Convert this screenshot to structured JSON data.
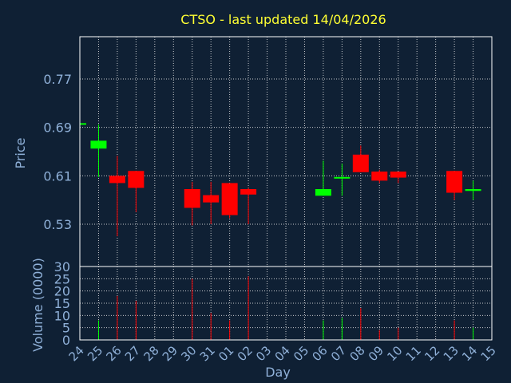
{
  "chart_data": {
    "type": "candlestick",
    "title": "CTSO - last updated 14/04/2026",
    "xlabel": "Day",
    "ylabel_price": "Price",
    "ylabel_volume": "Volume (0000)",
    "price_ylim": [
      0.46,
      0.84
    ],
    "price_ticks": [
      "0.53",
      "0.61",
      "0.69",
      "0.77"
    ],
    "volume_ylim": [
      0,
      30
    ],
    "volume_ticks": [
      "0",
      "5",
      "10",
      "15",
      "20",
      "25",
      "30"
    ],
    "x_labels": [
      "24",
      "25",
      "26",
      "27",
      "28",
      "29",
      "30",
      "31",
      "01",
      "02",
      "03",
      "04",
      "05",
      "06",
      "07",
      "08",
      "09",
      "10",
      "11",
      "12",
      "13",
      "14",
      "15"
    ],
    "colors": {
      "up": "#00ff00",
      "down": "#ff0000",
      "background": "#0f2034",
      "title": "#ffff33",
      "axis_text": "#8fb0d8"
    },
    "candles": [
      {
        "day": "24",
        "open": 0.697,
        "close": 0.697,
        "high": 0.697,
        "low": 0.697,
        "volume": 0
      },
      {
        "day": "25",
        "open": 0.655,
        "close": 0.668,
        "high": 0.695,
        "low": 0.608,
        "volume": 8
      },
      {
        "day": "26",
        "open": 0.61,
        "close": 0.598,
        "high": 0.643,
        "low": 0.51,
        "volume": 18
      },
      {
        "day": "27",
        "open": 0.618,
        "close": 0.59,
        "high": 0.618,
        "low": 0.55,
        "volume": 16
      },
      {
        "day": "30",
        "open": 0.588,
        "close": 0.557,
        "high": 0.6,
        "low": 0.528,
        "volume": 25
      },
      {
        "day": "31",
        "open": 0.578,
        "close": 0.566,
        "high": 0.6,
        "low": 0.53,
        "volume": 11
      },
      {
        "day": "01",
        "open": 0.598,
        "close": 0.545,
        "high": 0.598,
        "low": 0.54,
        "volume": 8
      },
      {
        "day": "02",
        "open": 0.588,
        "close": 0.579,
        "high": 0.59,
        "low": 0.53,
        "volume": 26
      },
      {
        "day": "06",
        "open": 0.577,
        "close": 0.588,
        "high": 0.635,
        "low": 0.577,
        "volume": 8
      },
      {
        "day": "07",
        "open": 0.606,
        "close": 0.608,
        "high": 0.63,
        "low": 0.577,
        "volume": 9
      },
      {
        "day": "08",
        "open": 0.645,
        "close": 0.616,
        "high": 0.66,
        "low": 0.616,
        "volume": 13
      },
      {
        "day": "09",
        "open": 0.617,
        "close": 0.602,
        "high": 0.62,
        "low": 0.598,
        "volume": 4
      },
      {
        "day": "10",
        "open": 0.617,
        "close": 0.607,
        "high": 0.617,
        "low": 0.598,
        "volume": 5
      },
      {
        "day": "13",
        "open": 0.618,
        "close": 0.582,
        "high": 0.618,
        "low": 0.57,
        "volume": 8
      },
      {
        "day": "14",
        "open": 0.585,
        "close": 0.588,
        "high": 0.602,
        "low": 0.57,
        "volume": 5
      }
    ]
  }
}
